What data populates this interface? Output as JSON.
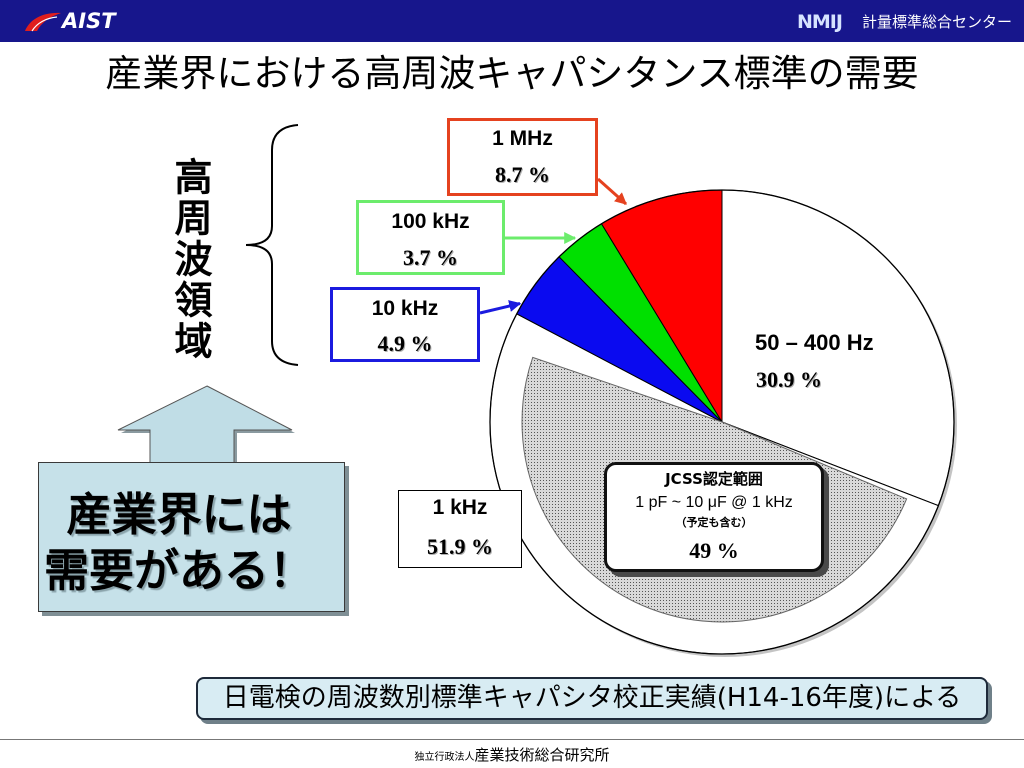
{
  "header": {
    "left_logo": "AIST",
    "right_logo": "NMIJ",
    "right_org": "計量標準総合センター",
    "bar_color": "#17168c",
    "logo_mark_color": "#e01e1e"
  },
  "title": "産業界における高周波キャパシタンス標準の需要",
  "side_label": "高周波領域",
  "callout": {
    "line1": "産業界には",
    "line2": "需要がある！",
    "fill_color": "#c6e1e9"
  },
  "source_note": "日電検の周波数別標準キャパシタ校正実績(H14-16年度)による",
  "footer": {
    "prefix": "独立行政法人",
    "org": "産業技術総合研究所"
  },
  "chart_data": {
    "type": "pie",
    "slices": [
      {
        "label": "50 – 400 Hz",
        "value": 30.9,
        "value_label": "30.9 %",
        "color": "#ffffff"
      },
      {
        "label": "1 kHz",
        "value": 51.9,
        "value_label": "51.9 %",
        "color": "#ffffff"
      },
      {
        "label": "10 kHz",
        "value": 4.9,
        "value_label": "4.9 %",
        "color": "#0a0af0"
      },
      {
        "label": "100 kHz",
        "value": 3.7,
        "value_label": "3.7 %",
        "color": "#00e000"
      },
      {
        "label": "1 MHz",
        "value": 8.7,
        "value_label": "8.7 %",
        "color": "#ff0000"
      }
    ],
    "sub_region": {
      "parent_index": 1,
      "title": "JCSS認定範囲",
      "range": "1 pF ~ 10 μF @ 1 kHz",
      "note": "（予定も含む）",
      "value": 49,
      "value_label": "49 %",
      "fill_color": "#d9d9d9"
    }
  }
}
